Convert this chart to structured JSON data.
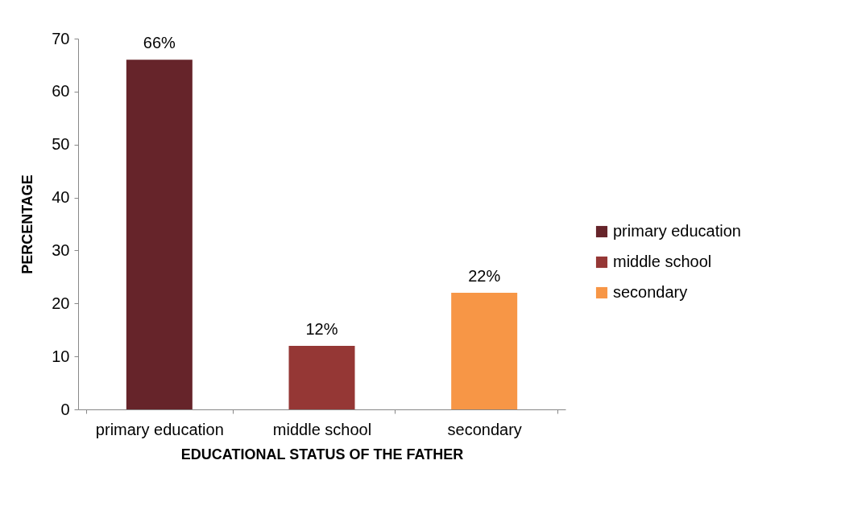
{
  "chart_data": {
    "type": "bar",
    "xlabel": "EDUCATIONAL STATUS OF THE FATHER",
    "ylabel": "PERCENTAGE",
    "categories": [
      "primary education",
      "middle school",
      "secondary"
    ],
    "series": [
      {
        "name": "primary education",
        "color": "#66242a",
        "values": [
          66,
          null,
          null
        ],
        "value_labels": [
          "66%",
          null,
          null
        ]
      },
      {
        "name": "middle school",
        "color": "#953735",
        "values": [
          null,
          12,
          null
        ],
        "value_labels": [
          null,
          "12%",
          null
        ]
      },
      {
        "name": "secondary",
        "color": "#f79646",
        "values": [
          null,
          null,
          22
        ],
        "value_labels": [
          null,
          null,
          "22%"
        ]
      }
    ],
    "ylim": [
      0,
      70
    ],
    "yticks": [
      0,
      10,
      20,
      30,
      40,
      50,
      60,
      70
    ],
    "grid": false,
    "legend": "right"
  }
}
